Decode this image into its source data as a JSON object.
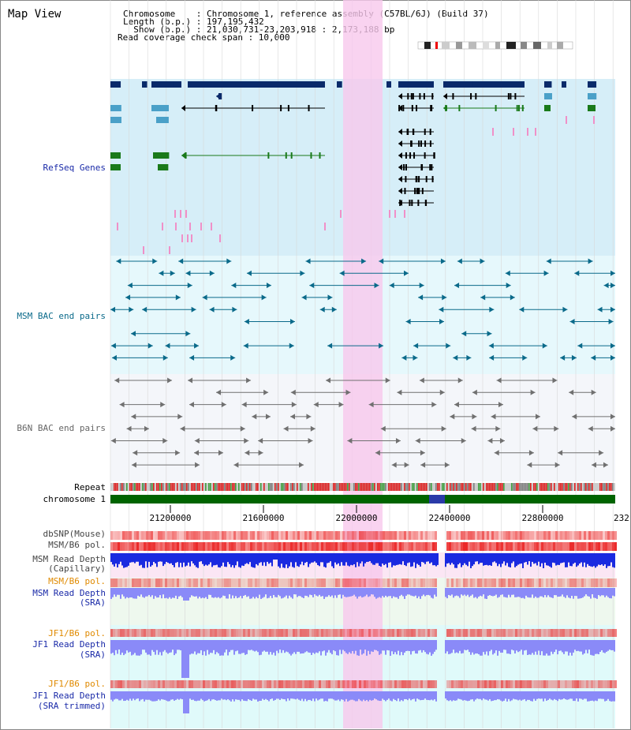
{
  "page": {
    "title": "Map View"
  },
  "header": {
    "chromosome_line": "Chromosome    : Chromosome 1, reference assembly (C57BL/6J) (Build 37)",
    "length_line": "Length (b.p.) : 197,195,432",
    "show_line": "  Show (b.p.) : 21,030,731-23,203,918 : 2,173,188 bp",
    "coverage_line": "Read coverage check span : 10,000"
  },
  "tracks": {
    "refseq": "RefSeq Genes",
    "msm_bac": "MSM BAC end pairs",
    "b6n_bac": "B6N BAC end pairs",
    "repeat": "Repeat",
    "chromosome": "chromosome 1",
    "dbsnp": "dbSNP(Mouse)",
    "msm_b6_pol": "MSM/B6 pol.",
    "msm_depth_cap_1": "MSM Read Depth",
    "msm_depth_cap_2": "(Capillary)",
    "msm_b6_pol_2": "MSM/B6 pol.",
    "msm_depth_sra_1": "MSM Read Depth",
    "msm_depth_sra_2": "(SRA)",
    "jf1_pol": "JF1/B6 pol.",
    "jf1_depth_sra_1": "JF1 Read Depth",
    "jf1_depth_sra_2": "(SRA)",
    "jf1_pol_2": "JF1/B6 pol.",
    "jf1_depth_trim_1": "JF1 Read Depth",
    "jf1_depth_trim_2": "(SRA trimmed)"
  },
  "axis": {
    "ticks": [
      "21200000",
      "21600000",
      "22000000",
      "22400000",
      "22800000",
      "232"
    ]
  },
  "colors": {
    "refseq_dark": "#0a2a6a",
    "refseq_light": "#4aa0c8",
    "refseq_green": "#1a7a1a",
    "msm_bac": "#0a6a8a",
    "b6n_bac": "#707070",
    "highlight": "#f8c8ec",
    "chromosome_bar": "#006400",
    "depth": "#1a2ae0",
    "depth_light": "#8a8af8",
    "pol": "#f04040"
  }
}
